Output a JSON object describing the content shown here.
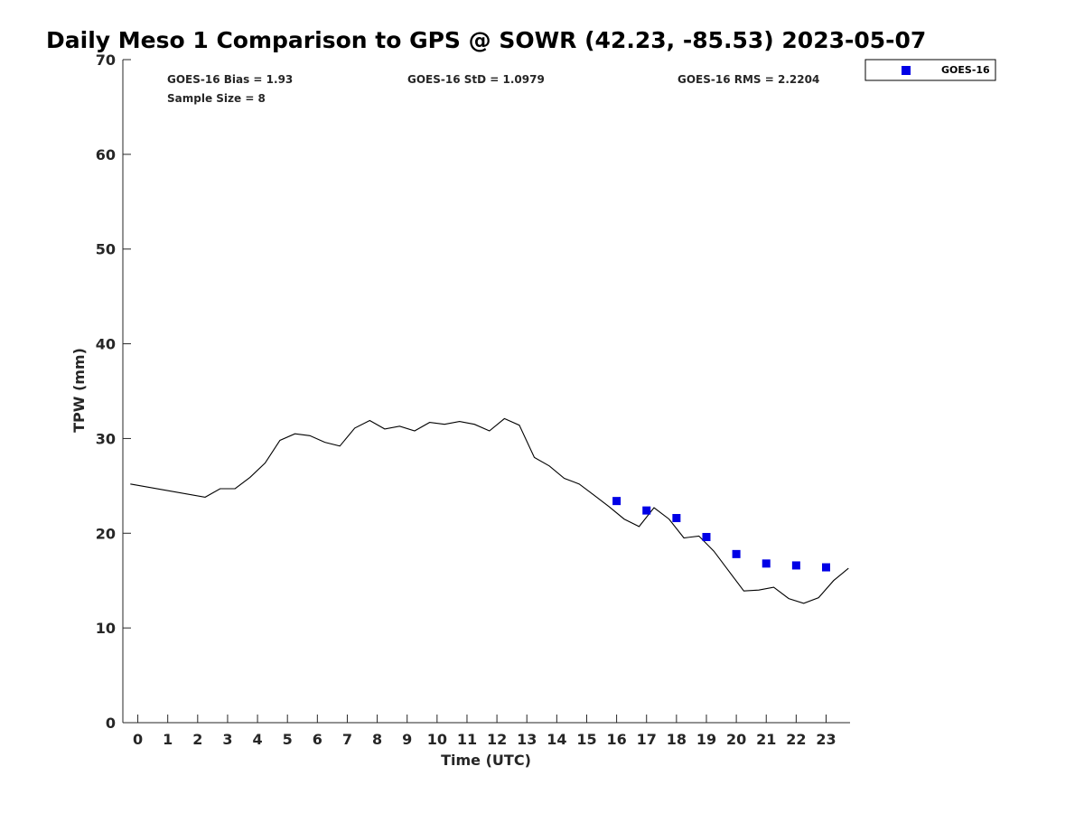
{
  "chart_data": {
    "type": "line",
    "title": "Daily Meso 1 Comparison to GPS @ SOWR (42.23, -85.53) 2023-05-07",
    "xlabel": "Time (UTC)",
    "ylabel": "TPW (mm)",
    "xlim": [
      -0.5,
      23.8
    ],
    "ylim": [
      0,
      70
    ],
    "x_ticks": [
      "0",
      "1",
      "2",
      "3",
      "4",
      "5",
      "6",
      "7",
      "8",
      "9",
      "10",
      "11",
      "12",
      "13",
      "14",
      "15",
      "16",
      "17",
      "18",
      "19",
      "20",
      "21",
      "22",
      "23"
    ],
    "y_ticks": [
      "0",
      "10",
      "20",
      "30",
      "40",
      "50",
      "60",
      "70"
    ],
    "stats": {
      "bias": "GOES-16 Bias = 1.93",
      "std": "GOES-16 StD = 1.0979",
      "rms": "GOES-16 RMS = 2.2204",
      "sample": "Sample Size = 8"
    },
    "legend": {
      "position": "top-right-outside",
      "entries": [
        "GOES-16"
      ]
    },
    "series": [
      {
        "type": "line",
        "color": "#000000",
        "x": [
          -0.25,
          2.25,
          2.75,
          3.25,
          3.75,
          4.25,
          4.75,
          5.25,
          5.75,
          6.25,
          6.75,
          7.25,
          7.75,
          8.25,
          8.75,
          9.25,
          9.75,
          10.25,
          10.75,
          11.25,
          11.75,
          12.25,
          12.75,
          13.25,
          13.75,
          14.25,
          14.75,
          15.25,
          15.75,
          16.25,
          16.75,
          17.25,
          17.75,
          18.25,
          18.75,
          19.25,
          19.75,
          20.25,
          20.75,
          21.25,
          21.75,
          22.25,
          22.75,
          23.25,
          23.75
        ],
        "y": [
          25.2,
          23.8,
          24.7,
          24.7,
          25.9,
          27.4,
          29.8,
          30.5,
          30.3,
          29.6,
          29.2,
          31.1,
          31.9,
          31.0,
          31.3,
          30.8,
          31.7,
          31.5,
          31.8,
          31.5,
          30.8,
          32.1,
          31.4,
          28.0,
          27.1,
          25.8,
          25.2,
          24.0,
          22.8,
          21.5,
          20.7,
          22.7,
          21.5,
          19.5,
          19.7,
          18.1,
          16.0,
          13.9,
          14.0,
          14.3,
          13.1,
          12.6,
          13.2,
          15.0,
          16.3
        ]
      },
      {
        "name": "GOES-16",
        "type": "scatter",
        "color": "#0000e6",
        "marker": "square",
        "x": [
          16,
          17,
          18,
          19,
          20,
          21,
          22,
          23
        ],
        "y": [
          23.4,
          22.4,
          21.6,
          19.6,
          17.8,
          16.8,
          16.6,
          16.4
        ]
      }
    ]
  }
}
